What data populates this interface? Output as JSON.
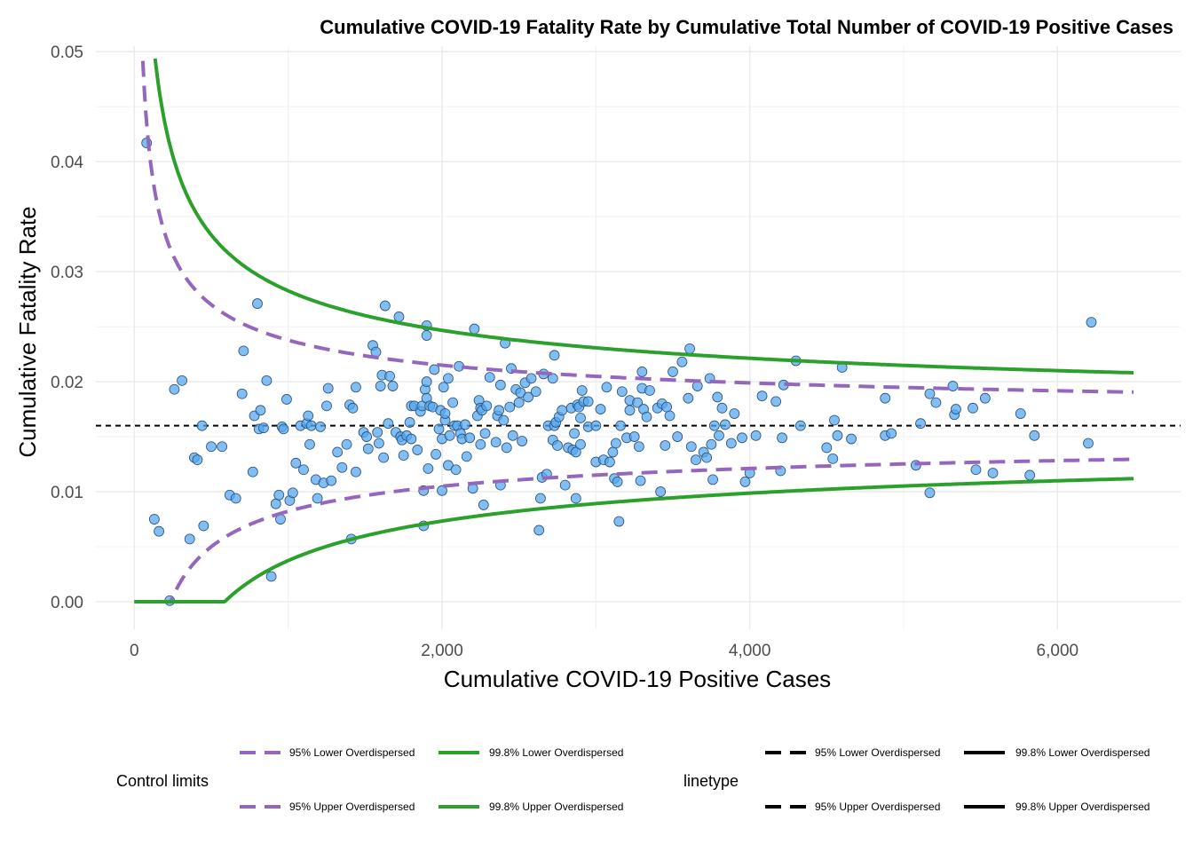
{
  "chart_data": {
    "type": "scatter",
    "title": "Cumulative COVID-19 Fatality Rate by Cumulative Total Number of COVID-19 Positive Cases",
    "xlabel": "Cumulative COVID-19 Positive Cases",
    "ylabel": "Cumulative Fatality Rate",
    "xlim": [
      -250,
      6800
    ],
    "ylim": [
      -0.0025,
      0.0505
    ],
    "x_ticks": [
      0,
      2000,
      4000,
      6000
    ],
    "x_tick_labels": [
      "0",
      "2,000",
      "4,000",
      "6,000"
    ],
    "y_ticks": [
      0,
      0.01,
      0.02,
      0.03,
      0.04,
      0.05
    ],
    "y_tick_labels": [
      "0.00",
      "0.01",
      "0.02",
      "0.03",
      "0.04",
      "0.05"
    ],
    "grid": true,
    "reference_line": {
      "y": 0.016,
      "style": "dashed",
      "color": "#000000"
    },
    "point_color": "#56a8f0",
    "point_edge_color": "#2a4f7a",
    "points": [
      [
        80,
        0.0417
      ],
      [
        130,
        0.0075
      ],
      [
        160,
        0.0064
      ],
      [
        230,
        0.0001
      ],
      [
        260,
        0.0193
      ],
      [
        310,
        0.0201
      ],
      [
        360,
        0.0057
      ],
      [
        390,
        0.0131
      ],
      [
        410,
        0.0129
      ],
      [
        440,
        0.016
      ],
      [
        450,
        0.0069
      ],
      [
        500,
        0.0141
      ],
      [
        570,
        0.0141
      ],
      [
        620,
        0.0097
      ],
      [
        660,
        0.0094
      ],
      [
        700,
        0.0189
      ],
      [
        710,
        0.0228
      ],
      [
        770,
        0.0118
      ],
      [
        780,
        0.0169
      ],
      [
        800,
        0.0271
      ],
      [
        810,
        0.0157
      ],
      [
        820,
        0.0174
      ],
      [
        840,
        0.0158
      ],
      [
        860,
        0.0201
      ],
      [
        890,
        0.0023
      ],
      [
        920,
        0.0089
      ],
      [
        940,
        0.0097
      ],
      [
        950,
        0.0075
      ],
      [
        960,
        0.0159
      ],
      [
        970,
        0.0157
      ],
      [
        990,
        0.0184
      ],
      [
        1010,
        0.0092
      ],
      [
        1030,
        0.0099
      ],
      [
        1050,
        0.0126
      ],
      [
        1080,
        0.016
      ],
      [
        1100,
        0.012
      ],
      [
        1120,
        0.0162
      ],
      [
        1130,
        0.0169
      ],
      [
        1140,
        0.0143
      ],
      [
        1150,
        0.016
      ],
      [
        1180,
        0.0111
      ],
      [
        1190,
        0.0094
      ],
      [
        1210,
        0.0159
      ],
      [
        1230,
        0.0108
      ],
      [
        1250,
        0.0178
      ],
      [
        1260,
        0.0194
      ],
      [
        1280,
        0.011
      ],
      [
        1320,
        0.0136
      ],
      [
        1350,
        0.0122
      ],
      [
        1380,
        0.0143
      ],
      [
        1400,
        0.0179
      ],
      [
        1410,
        0.0057
      ],
      [
        1420,
        0.0176
      ],
      [
        1440,
        0.0195
      ],
      [
        1440,
        0.0118
      ],
      [
        1490,
        0.0154
      ],
      [
        1510,
        0.015
      ],
      [
        1520,
        0.0139
      ],
      [
        1550,
        0.0233
      ],
      [
        1570,
        0.0227
      ],
      [
        1580,
        0.0154
      ],
      [
        1590,
        0.0144
      ],
      [
        1600,
        0.0196
      ],
      [
        1610,
        0.0206
      ],
      [
        1620,
        0.0131
      ],
      [
        1630,
        0.0269
      ],
      [
        1650,
        0.0162
      ],
      [
        1660,
        0.0205
      ],
      [
        1680,
        0.0196
      ],
      [
        1700,
        0.0154
      ],
      [
        1720,
        0.0259
      ],
      [
        1730,
        0.015
      ],
      [
        1740,
        0.0147
      ],
      [
        1750,
        0.0133
      ],
      [
        1770,
        0.0151
      ],
      [
        1790,
        0.0163
      ],
      [
        1800,
        0.0148
      ],
      [
        1800,
        0.0178
      ],
      [
        1820,
        0.0178
      ],
      [
        1840,
        0.0138
      ],
      [
        1860,
        0.0173
      ],
      [
        1870,
        0.0178
      ],
      [
        1880,
        0.0069
      ],
      [
        1880,
        0.0101
      ],
      [
        1890,
        0.0193
      ],
      [
        1900,
        0.02
      ],
      [
        1900,
        0.0242
      ],
      [
        1900,
        0.0251
      ],
      [
        1900,
        0.0185
      ],
      [
        1910,
        0.0121
      ],
      [
        1920,
        0.0178
      ],
      [
        1940,
        0.0177
      ],
      [
        1950,
        0.0211
      ],
      [
        1960,
        0.0134
      ],
      [
        1980,
        0.0157
      ],
      [
        1990,
        0.0174
      ],
      [
        2000,
        0.0148
      ],
      [
        2000,
        0.0101
      ],
      [
        2010,
        0.0195
      ],
      [
        2020,
        0.0165
      ],
      [
        2020,
        0.0171
      ],
      [
        2040,
        0.0203
      ],
      [
        2040,
        0.0124
      ],
      [
        2050,
        0.0151
      ],
      [
        2070,
        0.0181
      ],
      [
        2080,
        0.016
      ],
      [
        2090,
        0.012
      ],
      [
        2100,
        0.016
      ],
      [
        2110,
        0.0214
      ],
      [
        2120,
        0.0153
      ],
      [
        2130,
        0.0148
      ],
      [
        2150,
        0.0161
      ],
      [
        2160,
        0.0132
      ],
      [
        2180,
        0.0149
      ],
      [
        2200,
        0.0103
      ],
      [
        2210,
        0.0248
      ],
      [
        2230,
        0.0169
      ],
      [
        2240,
        0.0183
      ],
      [
        2250,
        0.0176
      ],
      [
        2250,
        0.0143
      ],
      [
        2260,
        0.0174
      ],
      [
        2270,
        0.0088
      ],
      [
        2280,
        0.0153
      ],
      [
        2290,
        0.0178
      ],
      [
        2310,
        0.0204
      ],
      [
        2350,
        0.0145
      ],
      [
        2360,
        0.0169
      ],
      [
        2370,
        0.0174
      ],
      [
        2380,
        0.0106
      ],
      [
        2380,
        0.0197
      ],
      [
        2400,
        0.0165
      ],
      [
        2410,
        0.0235
      ],
      [
        2420,
        0.014
      ],
      [
        2440,
        0.0177
      ],
      [
        2450,
        0.0212
      ],
      [
        2460,
        0.0151
      ],
      [
        2480,
        0.0193
      ],
      [
        2500,
        0.0181
      ],
      [
        2510,
        0.019
      ],
      [
        2520,
        0.0146
      ],
      [
        2540,
        0.0199
      ],
      [
        2560,
        0.0186
      ],
      [
        2580,
        0.0203
      ],
      [
        2610,
        0.0191
      ],
      [
        2630,
        0.0065
      ],
      [
        2640,
        0.0094
      ],
      [
        2650,
        0.0113
      ],
      [
        2660,
        0.0207
      ],
      [
        2680,
        0.0116
      ],
      [
        2690,
        0.016
      ],
      [
        2720,
        0.0147
      ],
      [
        2720,
        0.0203
      ],
      [
        2730,
        0.0224
      ],
      [
        2730,
        0.016
      ],
      [
        2740,
        0.0163
      ],
      [
        2750,
        0.0142
      ],
      [
        2760,
        0.0168
      ],
      [
        2780,
        0.0174
      ],
      [
        2800,
        0.0106
      ],
      [
        2820,
        0.014
      ],
      [
        2840,
        0.0176
      ],
      [
        2850,
        0.0138
      ],
      [
        2860,
        0.0153
      ],
      [
        2870,
        0.0094
      ],
      [
        2870,
        0.0136
      ],
      [
        2880,
        0.0179
      ],
      [
        2890,
        0.0177
      ],
      [
        2900,
        0.0167
      ],
      [
        2900,
        0.0143
      ],
      [
        2910,
        0.0192
      ],
      [
        2920,
        0.0182
      ],
      [
        2950,
        0.0159
      ],
      [
        2950,
        0.0182
      ],
      [
        3000,
        0.0127
      ],
      [
        3000,
        0.016
      ],
      [
        3030,
        0.0175
      ],
      [
        3050,
        0.0129
      ],
      [
        3070,
        0.0195
      ],
      [
        3090,
        0.0127
      ],
      [
        3110,
        0.0136
      ],
      [
        3120,
        0.0112
      ],
      [
        3130,
        0.0144
      ],
      [
        3140,
        0.0109
      ],
      [
        3150,
        0.0073
      ],
      [
        3160,
        0.016
      ],
      [
        3170,
        0.0191
      ],
      [
        3200,
        0.0149
      ],
      [
        3220,
        0.0174
      ],
      [
        3220,
        0.0183
      ],
      [
        3250,
        0.015
      ],
      [
        3270,
        0.0181
      ],
      [
        3280,
        0.0141
      ],
      [
        3290,
        0.011
      ],
      [
        3300,
        0.0194
      ],
      [
        3300,
        0.0209
      ],
      [
        3310,
        0.0175
      ],
      [
        3330,
        0.0168
      ],
      [
        3350,
        0.0192
      ],
      [
        3400,
        0.0176
      ],
      [
        3420,
        0.01
      ],
      [
        3430,
        0.018
      ],
      [
        3450,
        0.0142
      ],
      [
        3460,
        0.0177
      ],
      [
        3480,
        0.0169
      ],
      [
        3500,
        0.0209
      ],
      [
        3530,
        0.015
      ],
      [
        3560,
        0.0218
      ],
      [
        3600,
        0.0185
      ],
      [
        3610,
        0.023
      ],
      [
        3620,
        0.0141
      ],
      [
        3650,
        0.0129
      ],
      [
        3660,
        0.0196
      ],
      [
        3700,
        0.0136
      ],
      [
        3720,
        0.0131
      ],
      [
        3740,
        0.0203
      ],
      [
        3750,
        0.0143
      ],
      [
        3760,
        0.0111
      ],
      [
        3770,
        0.016
      ],
      [
        3790,
        0.0186
      ],
      [
        3800,
        0.0151
      ],
      [
        3820,
        0.0176
      ],
      [
        3840,
        0.0161
      ],
      [
        3880,
        0.0144
      ],
      [
        3900,
        0.0171
      ],
      [
        3950,
        0.0149
      ],
      [
        3970,
        0.0109
      ],
      [
        4000,
        0.0117
      ],
      [
        4040,
        0.0151
      ],
      [
        4080,
        0.0187
      ],
      [
        4170,
        0.0182
      ],
      [
        4200,
        0.0119
      ],
      [
        4210,
        0.0149
      ],
      [
        4220,
        0.0197
      ],
      [
        4300,
        0.0219
      ],
      [
        4330,
        0.016
      ],
      [
        4500,
        0.014
      ],
      [
        4540,
        0.013
      ],
      [
        4550,
        0.0165
      ],
      [
        4570,
        0.0151
      ],
      [
        4600,
        0.0213
      ],
      [
        4660,
        0.0148
      ],
      [
        4880,
        0.0185
      ],
      [
        4880,
        0.0151
      ],
      [
        4920,
        0.0153
      ],
      [
        5080,
        0.0124
      ],
      [
        5110,
        0.0162
      ],
      [
        5170,
        0.0099
      ],
      [
        5170,
        0.0189
      ],
      [
        5210,
        0.0181
      ],
      [
        5320,
        0.0196
      ],
      [
        5330,
        0.017
      ],
      [
        5340,
        0.0175
      ],
      [
        5450,
        0.0176
      ],
      [
        5470,
        0.012
      ],
      [
        5530,
        0.0185
      ],
      [
        5580,
        0.0117
      ],
      [
        5760,
        0.0171
      ],
      [
        5820,
        0.0115
      ],
      [
        5850,
        0.0151
      ],
      [
        6200,
        0.0144
      ],
      [
        6220,
        0.0254
      ]
    ],
    "control_limits": {
      "center": 0.016,
      "n_range": [
        0,
        6500
      ],
      "series": [
        {
          "name": "95% Lower Overdispersed",
          "z": -1.96,
          "color": "#9467bd",
          "style": "dashed"
        },
        {
          "name": "95% Upper Overdispersed",
          "z": 1.96,
          "color": "#9467bd",
          "style": "dashed"
        },
        {
          "name": "99.8% Lower Overdispersed",
          "z": -3.09,
          "color": "#2ca02c",
          "style": "solid"
        },
        {
          "name": "99.8% Upper Overdispersed",
          "z": 3.09,
          "color": "#2ca02c",
          "style": "solid"
        }
      ]
    },
    "legends": [
      {
        "title": "Control limits",
        "entries": [
          {
            "label": "95% Lower Overdispersed",
            "color": "#9467bd",
            "style": "dashed"
          },
          {
            "label": "99.8% Lower Overdispersed",
            "color": "#2ca02c",
            "style": "solid"
          },
          {
            "label": "95% Upper Overdispersed",
            "color": "#9467bd",
            "style": "dashed"
          },
          {
            "label": "99.8% Upper Overdispersed",
            "color": "#2ca02c",
            "style": "solid"
          }
        ]
      },
      {
        "title": "linetype",
        "entries": [
          {
            "label": "95% Lower Overdispersed",
            "color": "#000000",
            "style": "dashed"
          },
          {
            "label": "99.8% Lower Overdispersed",
            "color": "#000000",
            "style": "solid"
          },
          {
            "label": "95% Upper Overdispersed",
            "color": "#000000",
            "style": "dashed"
          },
          {
            "label": "99.8% Upper Overdispersed",
            "color": "#000000",
            "style": "solid"
          }
        ]
      }
    ],
    "legend_position": "bottom"
  }
}
